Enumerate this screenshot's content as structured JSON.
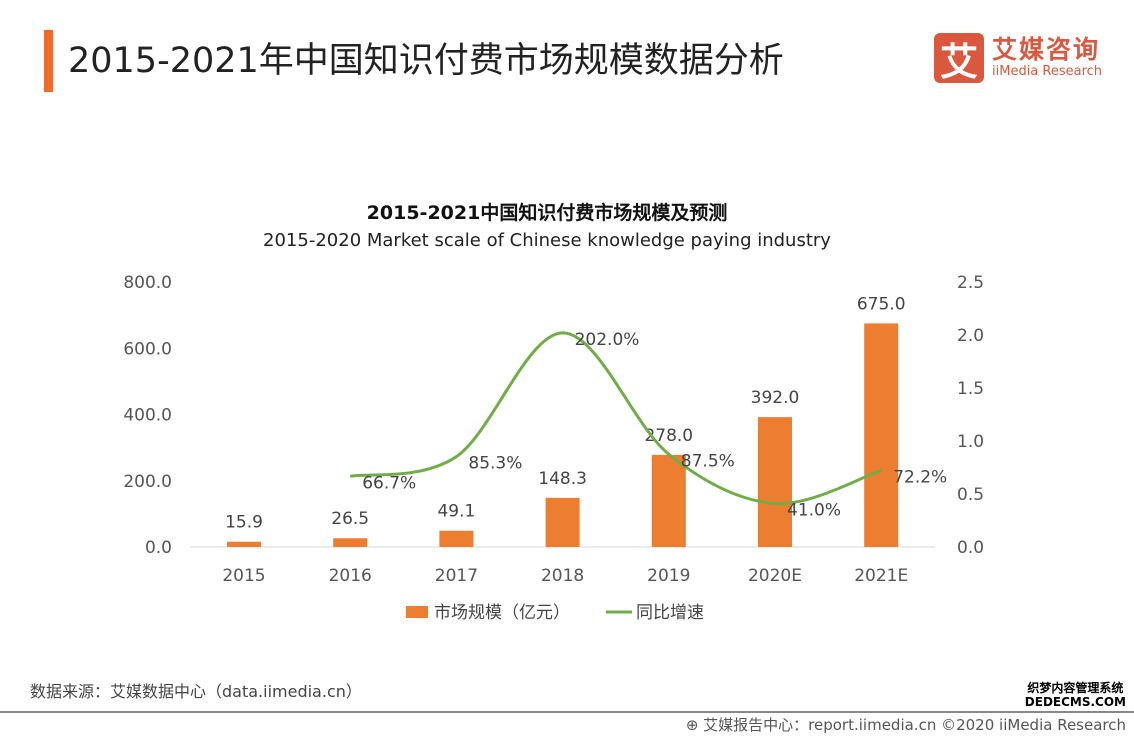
{
  "header": {
    "title": "2015-2021年中国知识付费市场规模数据分析",
    "logo_cn": "艾媒咨询",
    "logo_en": "iiMedia Research",
    "logo_mark": "艾"
  },
  "chart_data": {
    "type": "bar+line",
    "title": "2015-2021中国知识付费市场规模及预测",
    "subtitle": "2015-2020 Market scale of Chinese knowledge paying industry",
    "categories": [
      "2015",
      "2016",
      "2017",
      "2018",
      "2019",
      "2020E",
      "2021E"
    ],
    "left_axis": {
      "ticks": [
        "0.0",
        "200.0",
        "400.0",
        "600.0",
        "800.0"
      ],
      "range": [
        0,
        800
      ]
    },
    "right_axis": {
      "ticks": [
        "0.0",
        "0.5",
        "1.0",
        "1.5",
        "2.0",
        "2.5"
      ],
      "range": [
        0,
        2.5
      ]
    },
    "series": [
      {
        "name": "市场规模（亿元）",
        "type": "bar",
        "axis": "left",
        "color": "#ed7d31",
        "values": [
          15.9,
          26.5,
          49.1,
          148.3,
          278.0,
          392.0,
          675.0
        ],
        "labels": [
          "15.9",
          "26.5",
          "49.1",
          "148.3",
          "278.0",
          "392.0",
          "675.0"
        ]
      },
      {
        "name": "同比增速",
        "type": "line",
        "axis": "right",
        "color": "#70ad47",
        "values": [
          null,
          0.667,
          0.853,
          2.02,
          0.875,
          0.41,
          0.722
        ],
        "labels": [
          "",
          "66.7%",
          "85.3%",
          "202.0%",
          "87.5%",
          "41.0%",
          "72.2%"
        ]
      }
    ],
    "legend": "bottom",
    "grid": false
  },
  "source": "数据来源：艾媒数据中心（data.iimedia.cn）",
  "footer": "艾媒报告中心：report.iimedia.cn  ©2020  iiMedia Research",
  "watermark": {
    "line1": "织梦内容管理系统",
    "line2": "DEDECMS.COM"
  }
}
